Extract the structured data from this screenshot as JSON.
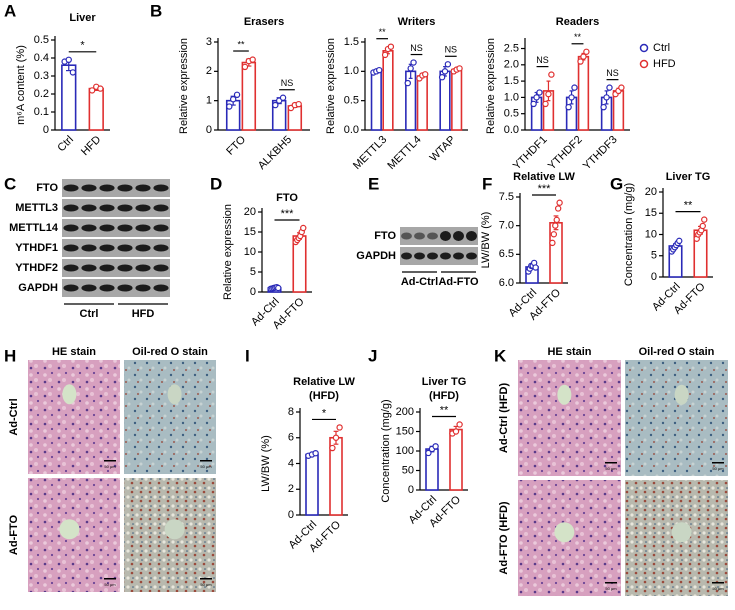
{
  "chart_data": [
    {
      "panel": "A",
      "type": "bar",
      "title": "Liver",
      "ylabel": "m⁶A content (%)",
      "categories": [
        "Ctrl",
        "HFD"
      ],
      "values": [
        0.36,
        0.23
      ],
      "errors": [
        0.03,
        0.01
      ],
      "points": [
        [
          0.38,
          0.39,
          0.32
        ],
        [
          0.22,
          0.24,
          0.23
        ]
      ],
      "colors": [
        "#2a2ab8",
        "#e03030"
      ],
      "ylim": [
        0,
        0.5
      ],
      "yticks": [
        0,
        0.1,
        0.2,
        0.3,
        0.4,
        0.5
      ],
      "significance": "*"
    },
    {
      "panel": "B",
      "type": "bar",
      "title": "Erasers",
      "ylabel": "Relative expression",
      "categories": [
        "FTO",
        "ALKBH5"
      ],
      "series": [
        {
          "color": "#2a2ab8",
          "values": [
            1,
            1
          ],
          "errors": [
            0.15,
            0.1
          ],
          "points": [
            [
              0.8,
              1.05,
              1.2
            ],
            [
              0.85,
              1.0,
              1.1
            ]
          ]
        },
        {
          "color": "#e03030",
          "values": [
            2.3,
            0.82
          ],
          "errors": [
            0.12,
            0.05
          ],
          "points": [
            [
              2.15,
              2.35,
              2.4
            ],
            [
              0.75,
              0.85,
              0.88
            ]
          ]
        }
      ],
      "ylim": [
        0,
        3
      ],
      "yticks": [
        0,
        1,
        2,
        3
      ],
      "significance": [
        "**",
        "NS"
      ]
    },
    {
      "type": "bar",
      "title": "Writers",
      "ylabel": "Relative expression",
      "categories": [
        "METTL3",
        "METTL4",
        "WTAP"
      ],
      "series": [
        {
          "color": "#2a2ab8",
          "values": [
            1,
            1,
            1
          ],
          "errors": [
            0.02,
            0.12,
            0.08
          ],
          "points": [
            [
              0.98,
              1.0,
              1.02
            ],
            [
              0.8,
              1.05,
              1.15
            ],
            [
              0.9,
              1.0,
              1.12
            ]
          ]
        },
        {
          "color": "#e03030",
          "values": [
            1.35,
            0.92,
            1.03
          ],
          "errors": [
            0.05,
            0.03,
            0.02
          ],
          "points": [
            [
              1.28,
              1.38,
              1.42
            ],
            [
              0.88,
              0.93,
              0.95
            ],
            [
              1.0,
              1.03,
              1.05
            ]
          ]
        }
      ],
      "ylim": [
        0,
        1.5
      ],
      "yticks": [
        {
          "value": 0,
          "label": "0.0"
        },
        0.5,
        {
          "value": 1,
          "label": "1.0"
        },
        1.5
      ],
      "significance": [
        "**",
        "NS",
        "NS"
      ]
    },
    {
      "type": "bar",
      "title": "Readers",
      "ylabel": "Relative expression",
      "categories": [
        "YTHDF1",
        "YTHDF2",
        "YTHDF3"
      ],
      "series": [
        {
          "name": "Ctrl",
          "color": "#2a2ab8",
          "values": [
            1,
            1,
            1
          ],
          "errors": [
            0.15,
            0.2,
            0.2
          ],
          "points": [
            [
              0.8,
              1.0,
              1.15
            ],
            [
              0.7,
              1.0,
              1.3
            ],
            [
              0.7,
              1.0,
              1.3
            ]
          ]
        },
        {
          "name": "HFD",
          "color": "#e03030",
          "values": [
            1.2,
            2.25,
            1.2
          ],
          "errors": [
            0.3,
            0.1,
            0.08
          ],
          "points": [
            [
              0.8,
              1.1,
              1.7
            ],
            [
              2.1,
              2.25,
              2.4
            ],
            [
              1.1,
              1.2,
              1.3
            ]
          ]
        }
      ],
      "ylim": [
        0,
        2.7
      ],
      "yticks": [
        {
          "value": 0,
          "label": "0.0"
        },
        0.5,
        {
          "value": 1,
          "label": "1.0"
        },
        1.5,
        {
          "value": 2,
          "label": "2.0"
        },
        2.5
      ],
      "significance": [
        "NS",
        "**",
        "NS"
      ],
      "legend": "right"
    },
    {
      "panel": "D",
      "type": "bar",
      "title": "FTO",
      "ylabel": "Relative expression",
      "categories": [
        "Ad-Ctrl",
        "Ad-FTO"
      ],
      "values": [
        1,
        14
      ],
      "errors": [
        0.2,
        0.8
      ],
      "points": [
        [
          0.8,
          0.9,
          1.0,
          1.1,
          1.2,
          1.0
        ],
        [
          12.5,
          13,
          13.5,
          14,
          15,
          16
        ]
      ],
      "colors": [
        "#2a2ab8",
        "#e03030"
      ],
      "ylim": [
        0,
        20
      ],
      "yticks": [
        0,
        5,
        10,
        15,
        20
      ],
      "significance": "***"
    },
    {
      "panel": "F",
      "type": "bar",
      "title": "Relative LW",
      "ylabel": "LW/BW (%)",
      "categories": [
        "Ad-Ctrl",
        "Ad-FTO"
      ],
      "values": [
        6.28,
        7.05
      ],
      "errors": [
        0.03,
        0.12
      ],
      "points": [
        [
          6.2,
          6.25,
          6.3,
          6.3,
          6.35,
          6.27
        ],
        [
          6.7,
          6.85,
          7.0,
          7.1,
          7.3,
          7.4
        ]
      ],
      "colors": [
        "#2a2ab8",
        "#e03030"
      ],
      "ylim": [
        6,
        7.5
      ],
      "yticks": [
        {
          "value": 6,
          "label": "6.0"
        },
        6.5,
        {
          "value": 7,
          "label": "7.0"
        },
        7.5
      ],
      "significance": "***"
    },
    {
      "panel": "G",
      "type": "bar",
      "title": "Liver TG",
      "ylabel": "Concentration (mg/g)",
      "categories": [
        "Ad-Ctrl",
        "Ad-FTO"
      ],
      "values": [
        7.3,
        11
      ],
      "errors": [
        0.5,
        0.9
      ],
      "points": [
        [
          6,
          6.5,
          7,
          7.5,
          8,
          8.5
        ],
        [
          9,
          10,
          10.5,
          11,
          12,
          13.5
        ]
      ],
      "colors": [
        "#2a2ab8",
        "#e03030"
      ],
      "ylim": [
        0,
        20
      ],
      "yticks": [
        0,
        5,
        10,
        15,
        20
      ],
      "significance": "**"
    },
    {
      "panel": "I",
      "type": "bar",
      "title": "Relative LW",
      "subtitle": "(HFD)",
      "ylabel": "LW/BW (%)",
      "categories": [
        "Ad-Ctrl",
        "Ad-FTO"
      ],
      "values": [
        4.7,
        6.0
      ],
      "errors": [
        0.1,
        0.5
      ],
      "points": [
        [
          4.6,
          4.7,
          4.8
        ],
        [
          5.2,
          6.0,
          6.8
        ]
      ],
      "colors": [
        "#2a2ab8",
        "#e03030"
      ],
      "ylim": [
        0,
        8
      ],
      "yticks": [
        0,
        2,
        4,
        6,
        8
      ],
      "significance": "*"
    },
    {
      "panel": "J",
      "type": "bar",
      "title": "Liver TG",
      "subtitle": "(HFD)",
      "ylabel": "Concentration (mg/g)",
      "categories": [
        "Ad-Ctrl",
        "Ad-FTO"
      ],
      "values": [
        105,
        155
      ],
      "errors": [
        7,
        8
      ],
      "points": [
        [
          95,
          105,
          112
        ],
        [
          145,
          150,
          168
        ]
      ],
      "colors": [
        "#2a2ab8",
        "#e03030"
      ],
      "ylim": [
        0,
        200
      ],
      "yticks": [
        0,
        50,
        100,
        150,
        200
      ],
      "significance": "**"
    }
  ],
  "blots": [
    {
      "panel": "C",
      "rows": [
        "FTO",
        "METTL3",
        "METTL14",
        "YTHDF1",
        "YTHDF2",
        "GAPDH"
      ],
      "groups": [
        "Ctrl",
        "HFD"
      ]
    },
    {
      "panel": "E",
      "rows": [
        "FTO",
        "GAPDH"
      ],
      "groups": [
        "Ad-Ctrl",
        "Ad-FTO"
      ]
    }
  ],
  "images": [
    {
      "panel": "H",
      "stains": [
        "HE stain",
        "Oil-red O stain"
      ],
      "rows": [
        "Ad-Ctrl",
        "Ad-FTO"
      ],
      "scale": "50 μm"
    },
    {
      "panel": "K",
      "stains": [
        "HE stain",
        "Oil-red O stain"
      ],
      "rows": [
        "Ad-Ctrl (HFD)",
        "Ad-FTO (HFD)"
      ],
      "scale": "50 μm"
    }
  ]
}
